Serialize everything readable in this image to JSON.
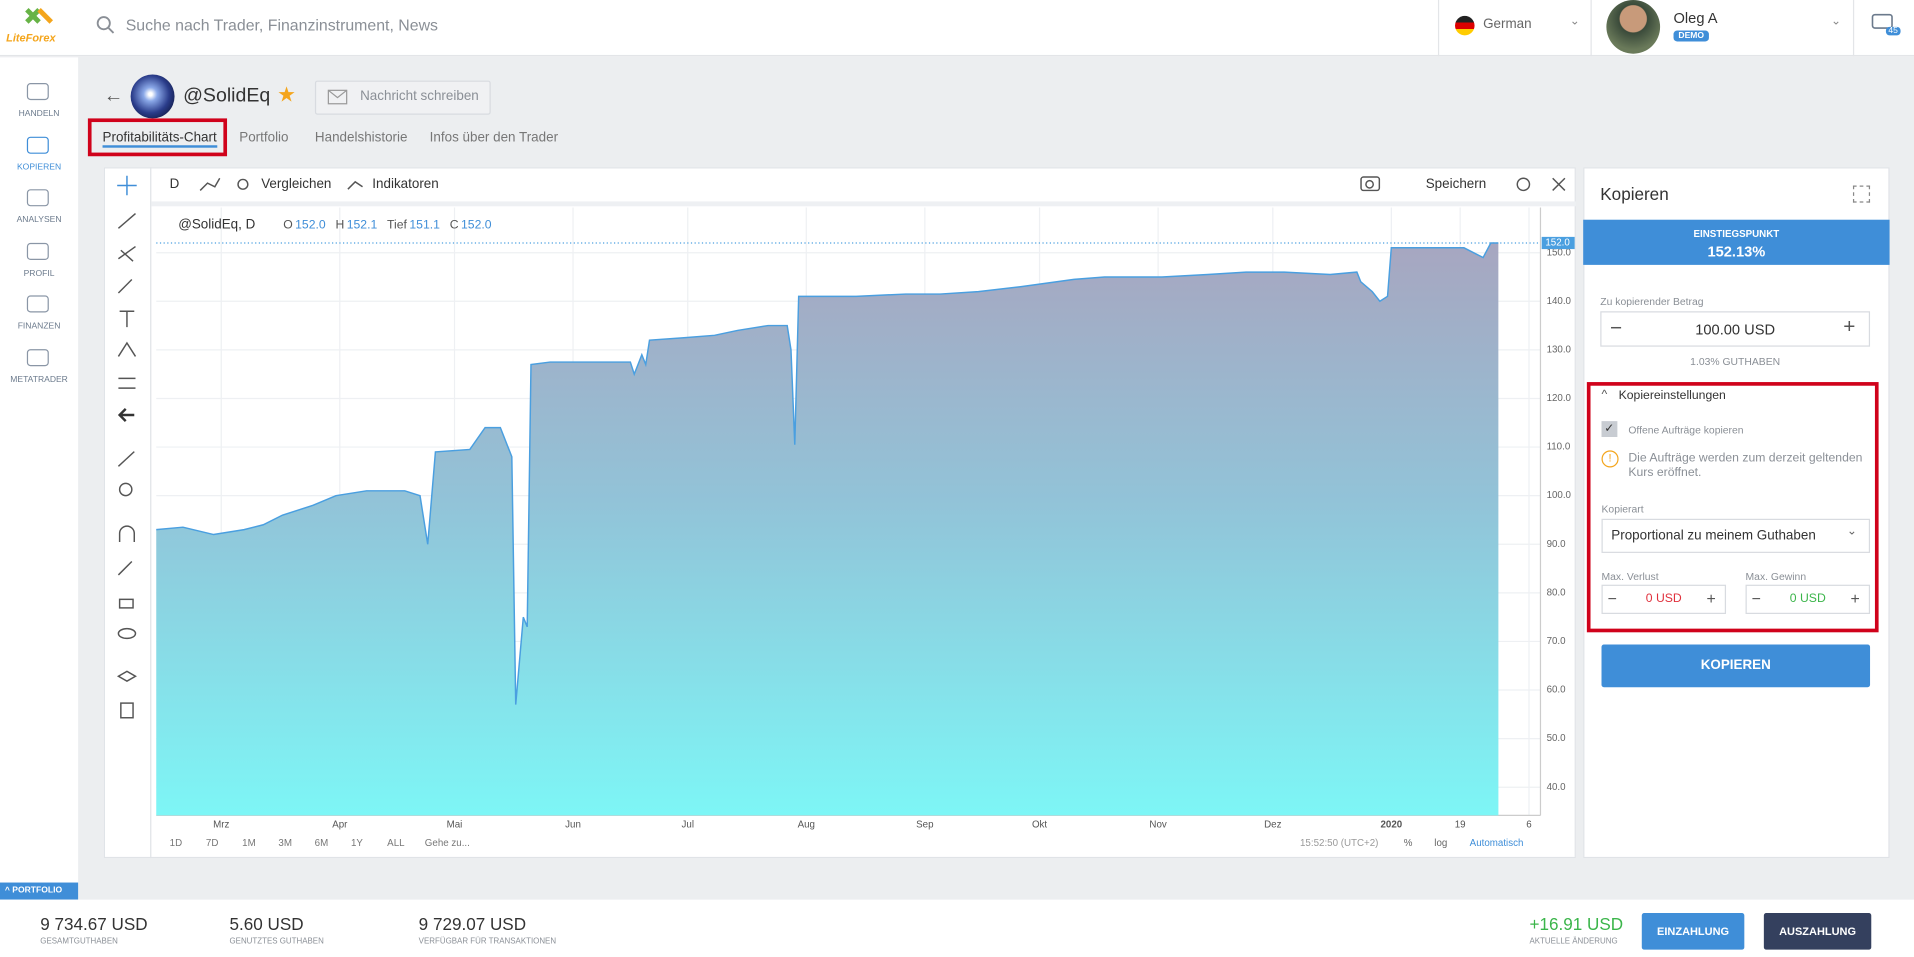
{
  "header": {
    "logo": "LiteForex",
    "search_placeholder": "Suche nach Trader, Finanzinstrument, News",
    "language": "German",
    "user_name": "Oleg A",
    "account_badge": "DEMO",
    "messages_count": "45"
  },
  "sidebar": {
    "items": [
      "HANDELN",
      "KOPIEREN",
      "ANALYSEN",
      "PROFIL",
      "FINANZEN",
      "METATRADER"
    ],
    "active": 1,
    "portfolio_tab": "PORTFOLIO"
  },
  "trader": {
    "handle": "@SolidEq",
    "message_button": "Nachricht schreiben"
  },
  "tabs": {
    "items": [
      "Profitabilitäts-Chart",
      "Portfolio",
      "Handelshistorie",
      "Infos über den Trader"
    ],
    "active": 0
  },
  "chart_toolbar": {
    "interval": "D",
    "compare": "Vergleichen",
    "indicators": "Indikatoren",
    "save": "Speichern"
  },
  "chart": {
    "type": "area",
    "symbol": "@SolidEq, D",
    "ohlc": [
      {
        "name": "O",
        "value": 152,
        "label": "152.0"
      },
      {
        "name": "H",
        "value": 152.1,
        "label": "152.1"
      },
      {
        "name": "Tief",
        "value": 151.1,
        "label": "151.1"
      },
      {
        "name": "C",
        "value": 152,
        "label": "152.0"
      }
    ],
    "x": [
      0,
      7,
      15,
      23,
      28,
      33,
      41,
      47,
      55,
      65,
      69,
      71,
      73,
      82,
      86,
      90,
      93,
      94,
      96,
      97,
      98,
      103,
      124,
      125,
      127,
      128,
      129,
      138,
      146,
      152,
      160,
      165,
      166,
      167,
      168,
      183,
      196,
      205,
      215,
      226,
      240,
      248,
      263,
      275,
      285,
      295,
      307,
      314,
      315,
      318,
      320,
      322,
      323,
      330,
      342,
      347,
      349,
      351
    ],
    "values": [
      93,
      93.5,
      92,
      93,
      94,
      96,
      98,
      100,
      101,
      101,
      100,
      90,
      109,
      109.5,
      114,
      114,
      108,
      57,
      75,
      73,
      127,
      127.5,
      127.5,
      125,
      129,
      127,
      132,
      132.5,
      133,
      134,
      135,
      135,
      130,
      110.5,
      141,
      141,
      141.5,
      141.5,
      142,
      143,
      144.5,
      145,
      145,
      145.5,
      146,
      146,
      145.5,
      146,
      144,
      142,
      140,
      141,
      151,
      151,
      151,
      149,
      152,
      152
    ],
    "color": "#4a9fe0",
    "xlim": [
      0,
      362
    ],
    "xticks": [
      {
        "value": 17,
        "label": "Mrz"
      },
      {
        "value": 48,
        "label": "Apr"
      },
      {
        "value": 78,
        "label": "Mai"
      },
      {
        "value": 109,
        "label": "Jun"
      },
      {
        "value": 139,
        "label": "Jul"
      },
      {
        "value": 170,
        "label": "Aug"
      },
      {
        "value": 201,
        "label": "Sep"
      },
      {
        "value": 231,
        "label": "Okt"
      },
      {
        "value": 262,
        "label": "Nov"
      },
      {
        "value": 292,
        "label": "Dez"
      },
      {
        "value": 323,
        "label": "2020"
      },
      {
        "value": 341,
        "label": "19"
      },
      {
        "value": 359,
        "label": "6"
      }
    ],
    "ylim": [
      34.2,
      159.3
    ],
    "yticks": [
      {
        "value": 40,
        "label": "40.0"
      },
      {
        "value": 50,
        "label": "50.0"
      },
      {
        "value": 60,
        "label": "60.0"
      },
      {
        "value": 70,
        "label": "70.0"
      },
      {
        "value": 80,
        "label": "80.0"
      },
      {
        "value": 90,
        "label": "90.0"
      },
      {
        "value": 100,
        "label": "100.0"
      },
      {
        "value": 110,
        "label": "110.0"
      },
      {
        "value": 120,
        "label": "120.0"
      },
      {
        "value": 130,
        "label": "130.0"
      },
      {
        "value": 140,
        "label": "140.0"
      },
      {
        "value": 150,
        "label": "150.0"
      }
    ],
    "last_price": {
      "value": 152,
      "label": "152.0"
    },
    "grid": true
  },
  "chart_footer": {
    "ranges": [
      "1D",
      "7D",
      "1M",
      "3M",
      "6M",
      "1Y",
      "ALL"
    ],
    "goto": "Gehe zu...",
    "time": "15:52:50 (UTC+2)",
    "percent": "%",
    "log": "log",
    "auto": "Automatisch"
  },
  "copy_panel": {
    "title": "Kopieren",
    "entry_label": "EINSTIEGSPUNKT",
    "entry_value": {
      "value": 152.13,
      "label": "152.13%"
    },
    "amount_label": "Zu kopierender Betrag",
    "amount": "100.00 USD",
    "balance_share": "1.03% GUTHABEN",
    "settings_title": "Kopiereinstellungen",
    "copy_open_orders": "Offene Aufträge kopieren",
    "warning": "Die Aufträge werden zum derzeit geltenden Kurs eröffnet.",
    "copy_type_label": "Kopierart",
    "copy_type": "Proportional zu meinem Guthaben",
    "max_loss_label": "Max. Verlust",
    "max_loss": "0 USD",
    "max_profit_label": "Max. Gewinn",
    "max_profit": "0 USD",
    "button": "KOPIEREN"
  },
  "footer": {
    "stats": [
      {
        "value": "9 734.67 USD",
        "label": "GESAMTGUTHABEN"
      },
      {
        "value": "5.60 USD",
        "label": "GENUTZTES GUTHABEN"
      },
      {
        "value": "9 729.07 USD",
        "label": "VERFÜGBAR FÜR TRANSAKTIONEN"
      }
    ],
    "change": {
      "value": "+16.91 USD",
      "label": "AKTUELLE ÄNDERUNG"
    },
    "deposit": "EINZAHLUNG",
    "withdraw": "AUSZAHLUNG"
  }
}
